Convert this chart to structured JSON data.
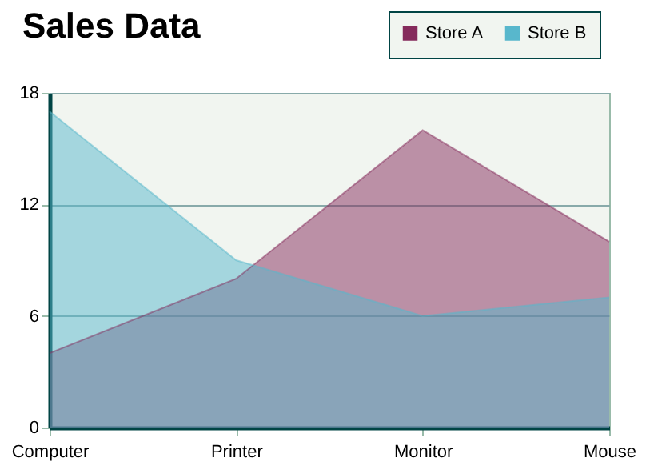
{
  "chart_data": {
    "type": "area",
    "title": "Sales Data",
    "categories": [
      "Computer",
      "Printer",
      "Monitor",
      "Mouse"
    ],
    "series": [
      {
        "name": "Store A",
        "color": "#852b5c",
        "values": [
          4,
          8,
          16,
          10
        ]
      },
      {
        "name": "Store B",
        "color": "#58b7cc",
        "values": [
          17,
          9,
          6,
          7
        ]
      }
    ],
    "ylim": [
      0,
      18
    ],
    "yticks": [
      0,
      6,
      12,
      18
    ],
    "grid": "y",
    "legend": "top right"
  }
}
